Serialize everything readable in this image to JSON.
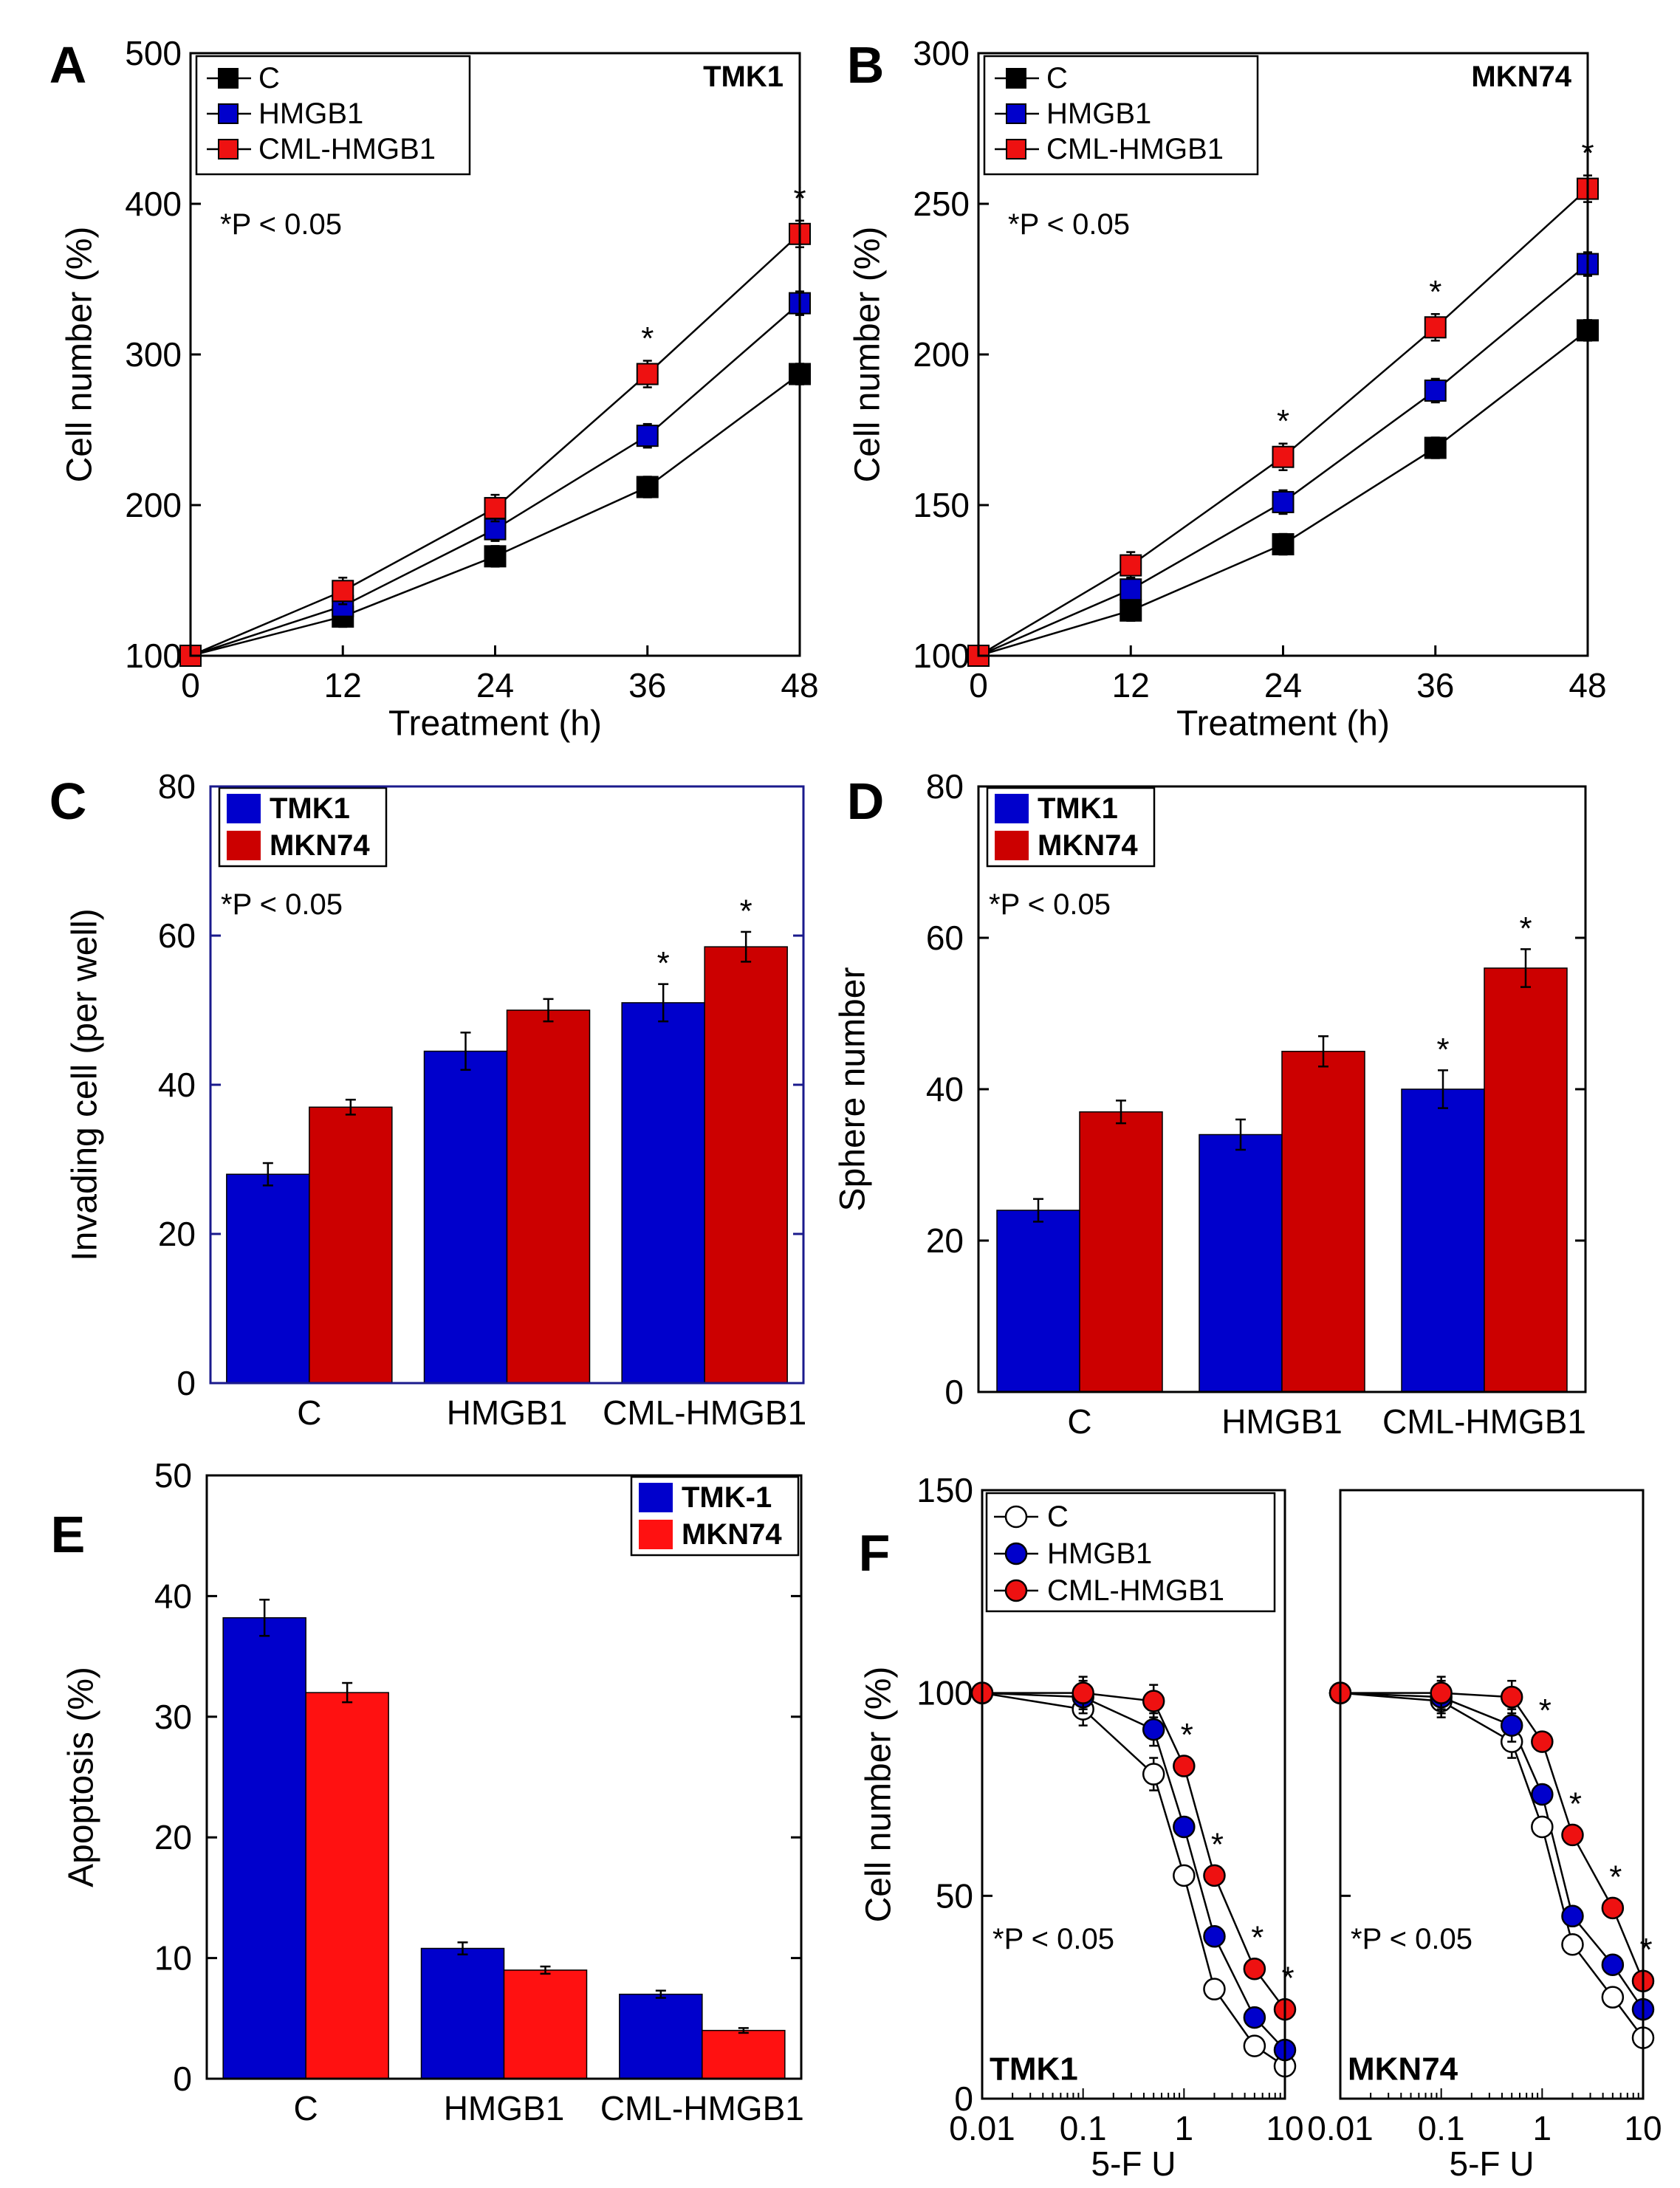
{
  "chart_data": [
    {
      "panel": "A",
      "type": "line",
      "label": "TMK1",
      "xlabel": "Treatment (h)",
      "ylabel": "Cell number (%)",
      "xlim": [
        0,
        48
      ],
      "ylim": [
        100,
        500
      ],
      "xticks": [
        "0",
        "12",
        "24",
        "36",
        "48"
      ],
      "yticks": [
        "100",
        "200",
        "300",
        "400",
        "500"
      ],
      "pvalue": "*P < 0.05",
      "legend_position": "top-left",
      "x": [
        0,
        12,
        24,
        36,
        48
      ],
      "series": [
        {
          "name": "C",
          "color": "#000000",
          "values": [
            100,
            126,
            166,
            212,
            287
          ]
        },
        {
          "name": "HMGB1",
          "color": "#0000cc",
          "values": [
            100,
            133,
            184,
            246,
            334
          ]
        },
        {
          "name": "CML-HMGB1",
          "color": "#ee1111",
          "values": [
            100,
            143,
            198,
            287,
            380
          ]
        }
      ],
      "star_x": [
        36,
        48
      ]
    },
    {
      "panel": "B",
      "type": "line",
      "label": "MKN74",
      "xlabel": "Treatment (h)",
      "ylabel": "Cell number (%)",
      "xlim": [
        0,
        48
      ],
      "ylim": [
        100,
        300
      ],
      "xticks": [
        "0",
        "12",
        "24",
        "36",
        "48"
      ],
      "yticks": [
        "100",
        "150",
        "200",
        "250",
        "300"
      ],
      "pvalue": "*P < 0.05",
      "legend_position": "top-left",
      "x": [
        0,
        12,
        24,
        36,
        48
      ],
      "series": [
        {
          "name": "C",
          "color": "#000000",
          "values": [
            100,
            115,
            137,
            169,
            208
          ]
        },
        {
          "name": "HMGB1",
          "color": "#0000cc",
          "values": [
            100,
            122,
            151,
            188,
            230
          ]
        },
        {
          "name": "CML-HMGB1",
          "color": "#ee1111",
          "values": [
            100,
            130,
            166,
            209,
            255
          ]
        }
      ],
      "star_x": [
        24,
        36,
        48
      ]
    },
    {
      "panel": "C",
      "type": "bar",
      "ylabel": "Invading cell (per well)",
      "categories": [
        "C",
        "HMGB1",
        "CML-HMGB1"
      ],
      "ylim": [
        0,
        80
      ],
      "yticks": [
        "0",
        "20",
        "40",
        "60",
        "80"
      ],
      "pvalue": "*P < 0.05",
      "legend_position": "top-left",
      "series": [
        {
          "name": "TMK1",
          "color": "#0000cc",
          "values": [
            28,
            44.5,
            51
          ],
          "errors": [
            1.5,
            2.5,
            2.5
          ]
        },
        {
          "name": "MKN74",
          "color": "#cc0000",
          "values": [
            37,
            50,
            58.5
          ],
          "errors": [
            1,
            1.5,
            2
          ]
        }
      ],
      "stars": [
        [
          false,
          false,
          true
        ],
        [
          false,
          false,
          true
        ]
      ]
    },
    {
      "panel": "D",
      "type": "bar",
      "ylabel": "Sphere number",
      "categories": [
        "C",
        "HMGB1",
        "CML-HMGB1"
      ],
      "ylim": [
        0,
        80
      ],
      "yticks": [
        "0",
        "20",
        "40",
        "60",
        "80"
      ],
      "pvalue": "*P < 0.05",
      "legend_position": "top-left",
      "series": [
        {
          "name": "TMK1",
          "color": "#0000cc",
          "values": [
            24,
            34,
            40
          ],
          "errors": [
            1.5,
            2,
            2.5
          ]
        },
        {
          "name": "MKN74",
          "color": "#cc0000",
          "values": [
            37,
            45,
            56
          ],
          "errors": [
            1.5,
            2,
            2.5
          ]
        }
      ],
      "stars": [
        [
          false,
          false,
          true
        ],
        [
          false,
          false,
          true
        ]
      ]
    },
    {
      "panel": "E",
      "type": "bar",
      "ylabel": "Apoptosis  (%)",
      "categories": [
        "C",
        "HMGB1",
        "CML-HMGB1"
      ],
      "ylim": [
        0,
        50
      ],
      "yticks": [
        "0",
        "10",
        "20",
        "30",
        "40",
        "50"
      ],
      "legend_position": "top-right",
      "series": [
        {
          "name": "TMK-1",
          "color": "#0000cc",
          "values": [
            38.2,
            10.8,
            7
          ],
          "errors": [
            1.5,
            0.5,
            0.3
          ]
        },
        {
          "name": "MKN74",
          "color": "#ff1111",
          "values": [
            32,
            9,
            4
          ],
          "errors": [
            0.8,
            0.3,
            0.2
          ]
        }
      ]
    },
    {
      "panel": "F",
      "type": "line",
      "xscale": "log",
      "xlabel": "5-F U",
      "ylabel": "Cell number (%)",
      "ylim": [
        0,
        150
      ],
      "yticks": [
        "0",
        "50",
        "100",
        "150"
      ],
      "xticks": [
        "0.01",
        "0.1",
        "1",
        "10"
      ],
      "legend_position": "top-left",
      "x": [
        0.01,
        0.1,
        0.5,
        1,
        2,
        5,
        10
      ],
      "subplots": [
        {
          "label": "TMK1",
          "pvalue": "*P < 0.05",
          "series": [
            {
              "name": "C",
              "color": "#ffffff",
              "values": [
                100,
                96,
                80,
                55,
                27,
                13,
                8
              ]
            },
            {
              "name": "HMGB1",
              "color": "#0000cc",
              "values": [
                100,
                99,
                91,
                67,
                40,
                20,
                12
              ]
            },
            {
              "name": "CML-HMGB1",
              "color": "#ee1111",
              "values": [
                100,
                100,
                98,
                82,
                55,
                32,
                22
              ]
            }
          ],
          "star_x": [
            1,
            2,
            5,
            10
          ]
        },
        {
          "label": "MKN74",
          "pvalue": "*P < 0.05",
          "series": [
            {
              "name": "C",
              "color": "#ffffff",
              "values": [
                100,
                98,
                88,
                67,
                38,
                25,
                15
              ]
            },
            {
              "name": "HMGB1",
              "color": "#0000cc",
              "values": [
                100,
                99,
                92,
                75,
                45,
                33,
                22
              ]
            },
            {
              "name": "CML-HMGB1",
              "color": "#ee1111",
              "values": [
                100,
                100,
                99,
                88,
                65,
                47,
                29
              ]
            }
          ],
          "star_x": [
            1,
            2,
            5,
            10
          ]
        }
      ]
    }
  ]
}
